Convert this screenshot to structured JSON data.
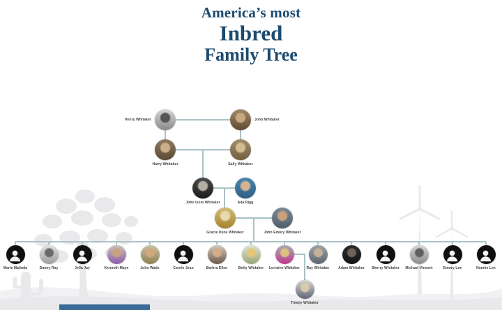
{
  "title": {
    "line1": "America’s most",
    "line2": "Inbred",
    "line3": "Family Tree"
  },
  "colors": {
    "title": "#1c4a6e",
    "line": "#a9c2c6",
    "label": "#3d3d3d",
    "silhouette_bg": "#101010",
    "silhouette_fg": "#f5f5f5",
    "background": "#ffffff",
    "scenery": "#e9e9ec",
    "scenery_light": "#f1f1f3",
    "footer_bar": "#3a6a96"
  },
  "people": [
    {
      "id": "henry",
      "name": "Henry Whitaker",
      "type": "photo",
      "palette": [
        "#d6d6d6",
        "#8a8a8a",
        "#555555"
      ]
    },
    {
      "id": "john",
      "name": "John Whitaker",
      "type": "photo",
      "palette": [
        "#a08868",
        "#5f4a33",
        "#caa87e"
      ]
    },
    {
      "id": "harry",
      "name": "Harry Whitaker",
      "type": "photo",
      "palette": [
        "#8d7a5d",
        "#5a4a36",
        "#c9b089"
      ]
    },
    {
      "id": "sally",
      "name": "Sally Whitaker",
      "type": "photo",
      "palette": [
        "#a38f6b",
        "#6f5e3f",
        "#d2bd92"
      ]
    },
    {
      "id": "john_isom",
      "name": "John Isom Whitaker",
      "type": "photo",
      "palette": [
        "#4a4a4a",
        "#1c1c1c",
        "#b5b0a6"
      ]
    },
    {
      "id": "ada",
      "name": "Ada Rigg",
      "type": "photo",
      "palette": [
        "#4887ad",
        "#2f6084",
        "#d7b291"
      ]
    },
    {
      "id": "gracie",
      "name": "Gracie Irene Whitaker",
      "type": "photo",
      "palette": [
        "#d3bd74",
        "#a5842e",
        "#e8d9ae"
      ]
    },
    {
      "id": "john_emory",
      "name": "John Emory Whitaker",
      "type": "photo",
      "palette": [
        "#7c8b96",
        "#4f5e68",
        "#c9a07b"
      ]
    },
    {
      "id": "c1",
      "name": "Marie Malinda",
      "type": "silhouette",
      "palette": []
    },
    {
      "id": "c2",
      "name": "Danny Ray",
      "type": "photo",
      "palette": [
        "#e0e0e0",
        "#9e9e9e",
        "#6a6a6a"
      ]
    },
    {
      "id": "c3",
      "name": "Jella Jay",
      "type": "silhouette",
      "palette": []
    },
    {
      "id": "c4",
      "name": "Kenneth Maye",
      "type": "photo",
      "palette": [
        "#cbc2b6",
        "#8d5cab",
        "#caa27e"
      ]
    },
    {
      "id": "c5",
      "name": "John Wade",
      "type": "photo",
      "palette": [
        "#c9c0a8",
        "#8f814f",
        "#d2a87e"
      ]
    },
    {
      "id": "c6",
      "name": "Carole Jean",
      "type": "silhouette",
      "palette": []
    },
    {
      "id": "c7",
      "name": "Barbra Ellen",
      "type": "photo",
      "palette": [
        "#cfc8bf",
        "#6e5a49",
        "#d4ab87"
      ]
    },
    {
      "id": "c8",
      "name": "Betty Whitaker",
      "type": "photo",
      "palette": [
        "#dfe3d2",
        "#9aa773",
        "#e3c878"
      ]
    },
    {
      "id": "c9",
      "name": "Lorraine Whitaker",
      "type": "photo",
      "palette": [
        "#a8adb2",
        "#c2368f",
        "#dcc07e"
      ]
    },
    {
      "id": "c10",
      "name": "Ray Whitaker",
      "type": "photo",
      "palette": [
        "#9aa3a8",
        "#5d686e",
        "#c7b299"
      ]
    },
    {
      "id": "c11",
      "name": "Adam Whitaker",
      "type": "photo",
      "palette": [
        "#2b2b2b",
        "#141414",
        "#6f6257"
      ]
    },
    {
      "id": "c12",
      "name": "Sherry Whitaker",
      "type": "silhouette",
      "palette": []
    },
    {
      "id": "c13",
      "name": "Michael Vincent",
      "type": "photo",
      "palette": [
        "#d4d4d4",
        "#8c8c8c",
        "#5f5f5f"
      ]
    },
    {
      "id": "c14",
      "name": "Emory Lee",
      "type": "silhouette",
      "palette": []
    },
    {
      "id": "c15",
      "name": "Nannie Lee",
      "type": "silhouette",
      "palette": []
    },
    {
      "id": "timmy",
      "name": "Timmy Whitaker",
      "type": "photo",
      "palette": [
        "#d9d5cf",
        "#5f6878",
        "#d8cba9"
      ]
    }
  ]
}
